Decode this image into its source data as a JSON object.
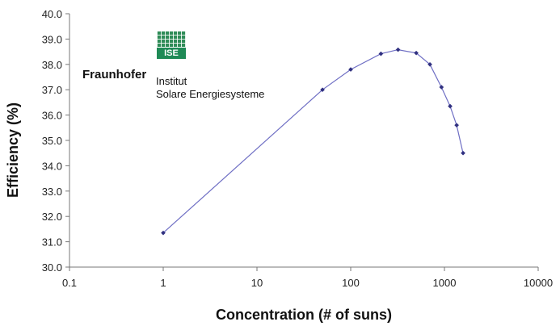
{
  "chart_data": {
    "type": "line",
    "title": "",
    "xlabel": "Concentration (# of suns)",
    "ylabel": "Efficiency (%)",
    "x_scale": "log",
    "xlim": [
      0.1,
      10000
    ],
    "ylim": [
      30.0,
      40.0
    ],
    "x_ticks": [
      "0.1",
      "1",
      "10",
      "100",
      "1000",
      "10000"
    ],
    "y_ticks": [
      "30.0",
      "31.0",
      "32.0",
      "33.0",
      "34.0",
      "35.0",
      "36.0",
      "37.0",
      "38.0",
      "39.0",
      "40.0"
    ],
    "grid": false,
    "legend": "none",
    "series": [
      {
        "color": "#6f6fc4",
        "x": [
          1,
          50,
          100,
          210,
          320,
          500,
          700,
          930,
          1150,
          1350,
          1580
        ],
        "y": [
          31.35,
          37.0,
          37.8,
          38.42,
          38.58,
          38.45,
          38.0,
          37.1,
          36.35,
          35.6,
          34.5
        ]
      }
    ]
  },
  "logo": {
    "mark_text": "ISE",
    "name": "Fraunhofer",
    "institute_line1": "Institut",
    "institute_line2": "Solare Energiesysteme"
  }
}
